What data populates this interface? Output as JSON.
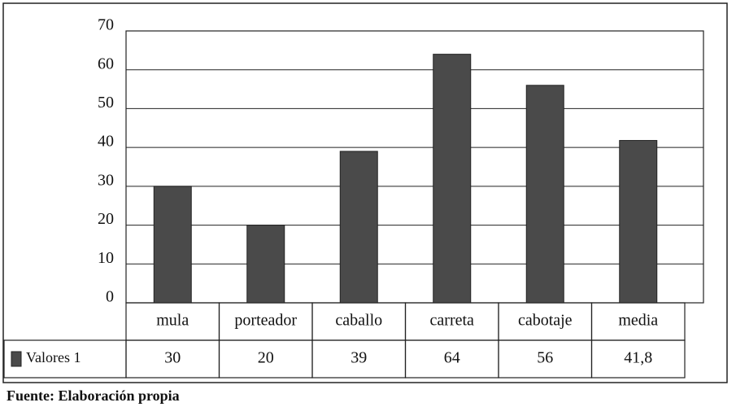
{
  "chart_data": {
    "type": "bar",
    "categories": [
      "mula",
      "porteador",
      "caballo",
      "carreta",
      "cabotaje",
      "media"
    ],
    "series": [
      {
        "name": "Valores 1",
        "color": "#4a4a4a",
        "values": [
          30,
          20,
          39,
          64,
          56,
          41.8
        ],
        "value_labels": [
          "30",
          "20",
          "39",
          "64",
          "56",
          "41,8"
        ]
      }
    ],
    "ylim": [
      0,
      70
    ],
    "yticks": [
      0,
      10,
      20,
      30,
      40,
      50,
      60,
      70
    ],
    "grid": true,
    "source": "Fuente: Elaboración propia"
  }
}
